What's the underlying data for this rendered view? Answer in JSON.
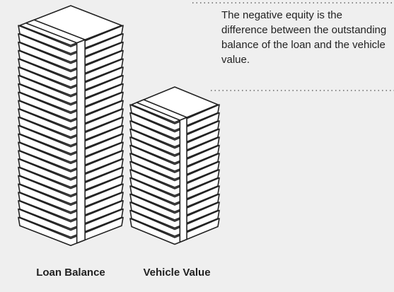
{
  "annotation": "The negative equity is the difference between the outstanding balance of the loan and the vehicle value.",
  "stacks": [
    {
      "label": "Loan Balance"
    },
    {
      "label": "Vehicle Value"
    }
  ]
}
